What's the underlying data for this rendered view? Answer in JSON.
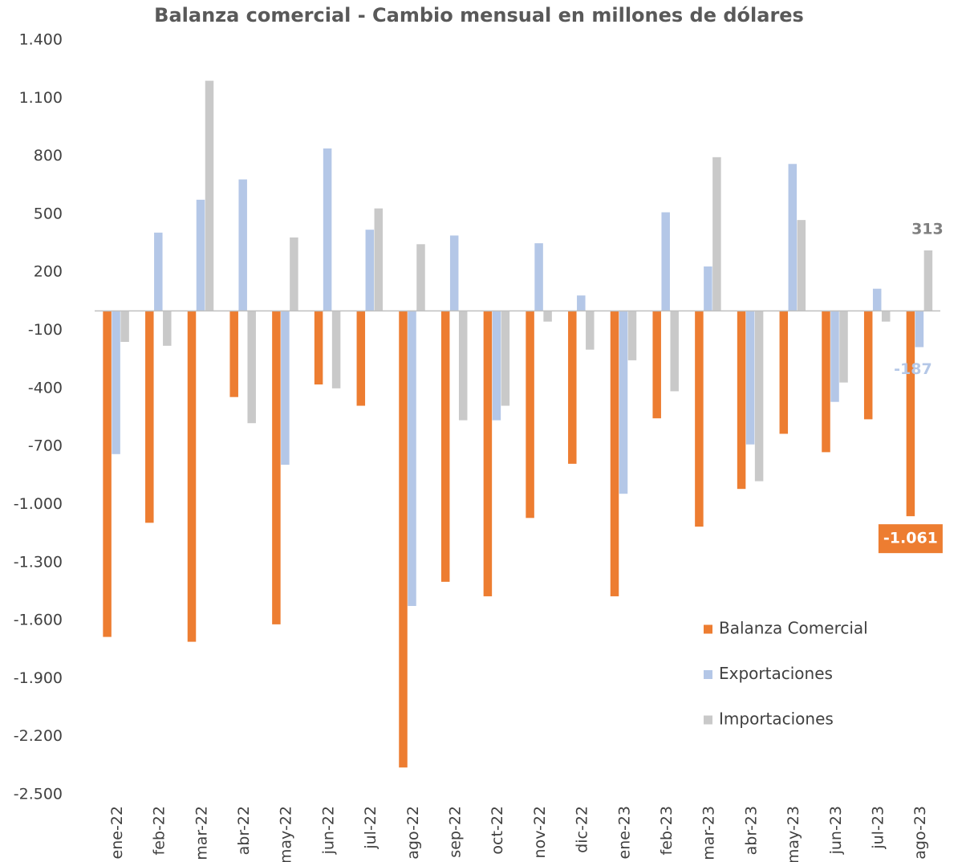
{
  "chart_data": {
    "type": "bar",
    "title": "Balanza comercial - Cambio mensual en millones de dólares",
    "categories": [
      "ene-22",
      "feb-22",
      "mar-22",
      "abr-22",
      "may-22",
      "jun-22",
      "jul-22",
      "ago-22",
      "sep-22",
      "oct-22",
      "nov-22",
      "dic-22",
      "ene-23",
      "feb-23",
      "mar-23",
      "abr-23",
      "may-23",
      "jun-23",
      "jul-23",
      "ago-23"
    ],
    "series": [
      {
        "name": "Balanza Comercial",
        "color": "#ed7d31",
        "label_color": "#ffffff",
        "label_box": "#ed7d31",
        "values": [
          -1685,
          -1095,
          -1710,
          -445,
          -1620,
          -380,
          -490,
          -2360,
          -1400,
          -1475,
          -1070,
          -790,
          -1475,
          -555,
          -1115,
          -920,
          -635,
          -730,
          -560,
          -1061
        ],
        "value_labels": [
          null,
          null,
          null,
          null,
          null,
          null,
          null,
          null,
          null,
          null,
          null,
          null,
          null,
          null,
          null,
          null,
          null,
          null,
          null,
          "-1.061"
        ]
      },
      {
        "name": "Exportaciones",
        "color": "#b4c7e7",
        "label_color": "#b4c7e7",
        "values": [
          -740,
          405,
          575,
          680,
          -795,
          840,
          420,
          -1525,
          390,
          -565,
          350,
          80,
          -945,
          510,
          230,
          -690,
          760,
          -470,
          115,
          -187
        ],
        "value_labels": [
          null,
          null,
          null,
          null,
          null,
          null,
          null,
          null,
          null,
          null,
          null,
          null,
          null,
          null,
          null,
          null,
          null,
          null,
          null,
          "-187"
        ]
      },
      {
        "name": "Importaciones",
        "color": "#c9c9c9",
        "label_color": "#7f7f7f",
        "values": [
          -160,
          -180,
          1190,
          -580,
          380,
          -400,
          530,
          345,
          -565,
          -490,
          -55,
          -200,
          -255,
          -415,
          795,
          -880,
          470,
          -370,
          -55,
          313
        ],
        "value_labels": [
          null,
          null,
          null,
          null,
          null,
          null,
          null,
          null,
          null,
          null,
          null,
          null,
          null,
          null,
          null,
          null,
          null,
          null,
          null,
          "313"
        ]
      }
    ],
    "ylim": [
      -2500,
      1400
    ],
    "yticks": [
      {
        "value": 1400,
        "label": "1.400"
      },
      {
        "value": 1100,
        "label": "1.100"
      },
      800,
      500,
      200,
      -100,
      -400,
      -700,
      {
        "value": -1000,
        "label": "-1.000"
      },
      {
        "value": -1300,
        "label": "-1.300"
      },
      {
        "value": -1600,
        "label": "-1.600"
      },
      {
        "value": -1900,
        "label": "-1.900"
      },
      {
        "value": -2200,
        "label": "-2.200"
      },
      {
        "value": -2500,
        "label": "-2.500"
      }
    ],
    "grid": false,
    "legend": "right"
  }
}
